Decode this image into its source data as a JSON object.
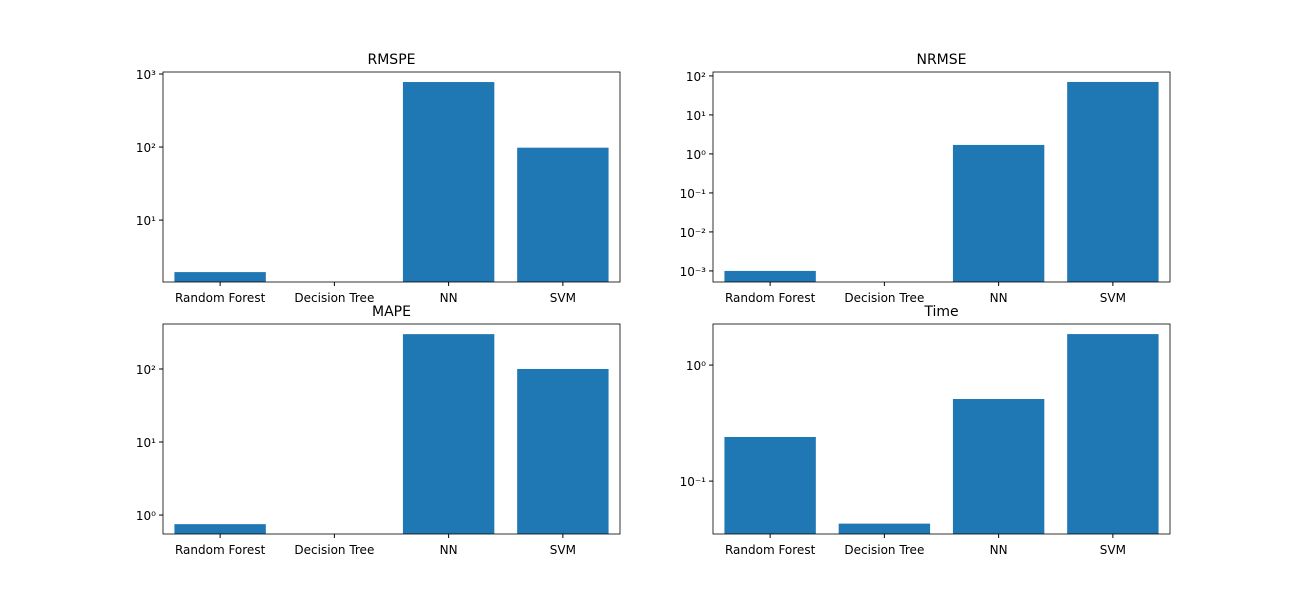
{
  "chart_data": [
    {
      "type": "bar",
      "title": "RMSPE",
      "categories": [
        "Random Forest",
        "Decision Tree",
        "NN",
        "SVM"
      ],
      "values": [
        1.94,
        null,
        776,
        98
      ],
      "color": "#1f77b4",
      "log_scale": true,
      "ylim": [
        1.42,
        1065
      ],
      "yticks": [
        {
          "value": 10,
          "label": "10¹"
        },
        {
          "value": 100,
          "label": "10²"
        },
        {
          "value": 1000,
          "label": "10³"
        }
      ]
    },
    {
      "type": "bar",
      "title": "NRMSE",
      "categories": [
        "Random Forest",
        "Decision Tree",
        "NN",
        "SVM"
      ],
      "values": [
        0.001,
        null,
        1.7,
        70
      ],
      "color": "#1f77b4",
      "log_scale": true,
      "ylim": [
        0.00052,
        126
      ],
      "yticks": [
        {
          "value": 0.001,
          "label": "10⁻³"
        },
        {
          "value": 0.01,
          "label": "10⁻²"
        },
        {
          "value": 0.1,
          "label": "10⁻¹"
        },
        {
          "value": 1,
          "label": "10⁰"
        },
        {
          "value": 10,
          "label": "10¹"
        },
        {
          "value": 100,
          "label": "10²"
        }
      ]
    },
    {
      "type": "bar",
      "title": "MAPE",
      "categories": [
        "Random Forest",
        "Decision Tree",
        "NN",
        "SVM"
      ],
      "values": [
        0.75,
        null,
        300,
        100
      ],
      "color": "#1f77b4",
      "log_scale": true,
      "ylim": [
        0.55,
        413
      ],
      "yticks": [
        {
          "value": 1,
          "label": "10⁰"
        },
        {
          "value": 10,
          "label": "10¹"
        },
        {
          "value": 100,
          "label": "10²"
        }
      ]
    },
    {
      "type": "bar",
      "title": "Time",
      "categories": [
        "Random Forest",
        "Decision Tree",
        "NN",
        "SVM"
      ],
      "values": [
        0.24,
        0.043,
        0.51,
        1.85
      ],
      "color": "#1f77b4",
      "log_scale": true,
      "ylim": [
        0.035,
        2.26
      ],
      "yticks": [
        {
          "value": 0.1,
          "label": "10⁻¹"
        },
        {
          "value": 1,
          "label": "10⁰"
        }
      ]
    }
  ]
}
